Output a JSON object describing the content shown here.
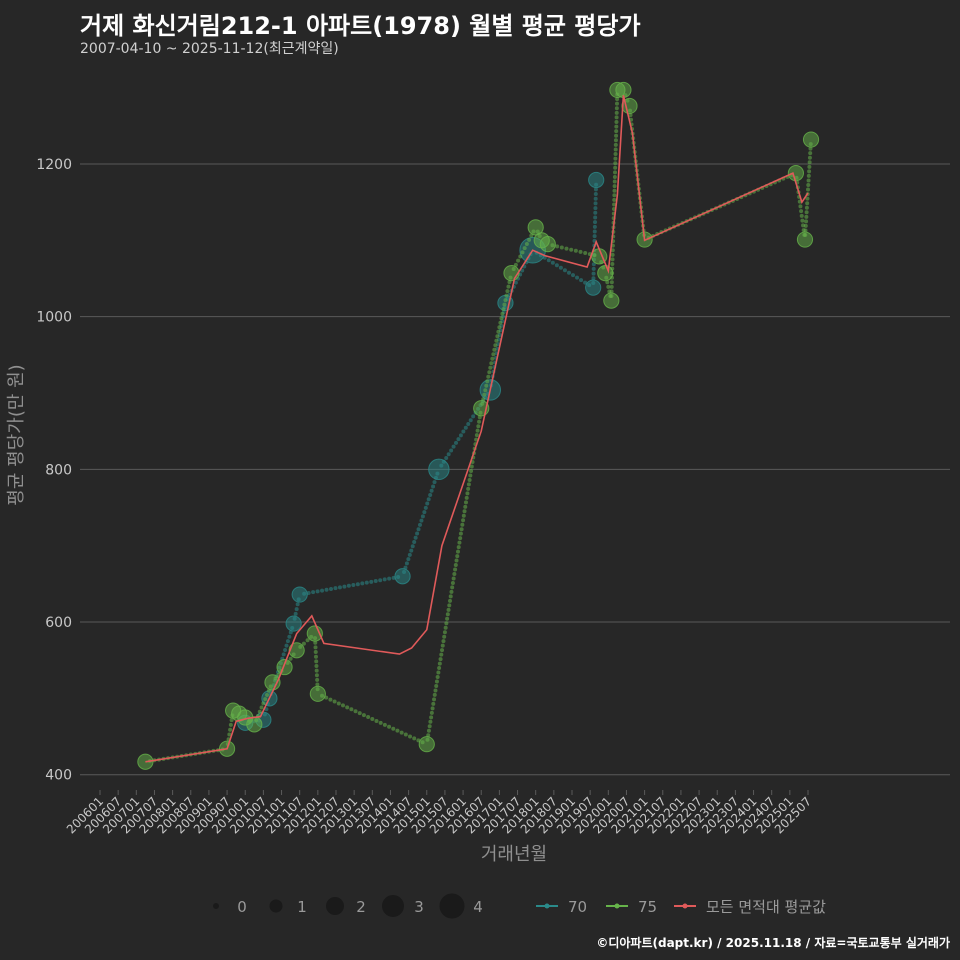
{
  "title": "거제 화신거림212-1 아파트(1978) 월별 평균 평당가",
  "subtitle": "2007-04-10 ~ 2025-11-12(최근계약일)",
  "caption": "©디아파트(dapt.kr) / 2025.11.18 / 자료=국토교통부 실거래가",
  "chart_data": {
    "type": "line",
    "xlabel": "거래년월",
    "ylabel": "평균 평당가(만 원)",
    "x_range": [
      "2006-01",
      "2025-12"
    ],
    "ylim": [
      380,
      1310
    ],
    "yticks": [
      400,
      600,
      800,
      1000,
      1200
    ],
    "grid": true,
    "xtick_labels": [
      "200601",
      "200607",
      "200701",
      "200707",
      "200801",
      "200807",
      "200901",
      "200907",
      "201001",
      "201007",
      "201101",
      "201107",
      "201201",
      "201207",
      "201301",
      "201307",
      "201401",
      "201407",
      "201501",
      "201507",
      "201601",
      "201607",
      "201701",
      "201707",
      "201801",
      "201807",
      "201901",
      "201907",
      "202001",
      "202007",
      "202101",
      "202107",
      "202201",
      "202207",
      "202301",
      "202307",
      "202401",
      "202407",
      "202501",
      "202507"
    ],
    "series": [
      {
        "name": "70",
        "color": "#2a8a8a",
        "points": [
          {
            "x": "2010-01",
            "y": 468,
            "size": 1
          },
          {
            "x": "2010-07",
            "y": 472,
            "size": 1
          },
          {
            "x": "2010-09",
            "y": 500,
            "size": 1
          },
          {
            "x": "2011-05",
            "y": 598,
            "size": 1
          },
          {
            "x": "2011-07",
            "y": 636,
            "size": 1
          },
          {
            "x": "2014-05",
            "y": 660,
            "size": 1
          },
          {
            "x": "2015-05",
            "y": 800,
            "size": 2
          },
          {
            "x": "2016-10",
            "y": 904,
            "size": 2
          },
          {
            "x": "2017-03",
            "y": 1018,
            "size": 1
          },
          {
            "x": "2017-12",
            "y": 1087,
            "size": 3
          },
          {
            "x": "2019-08",
            "y": 1038,
            "size": 1
          },
          {
            "x": "2019-09",
            "y": 1179,
            "size": 1
          }
        ]
      },
      {
        "name": "75",
        "color": "#66b34a",
        "points": [
          {
            "x": "2007-04",
            "y": 417,
            "size": 1
          },
          {
            "x": "2009-07",
            "y": 434,
            "size": 1
          },
          {
            "x": "2009-09",
            "y": 484,
            "size": 1
          },
          {
            "x": "2009-11",
            "y": 480,
            "size": 1
          },
          {
            "x": "2010-01",
            "y": 475,
            "size": 1
          },
          {
            "x": "2010-04",
            "y": 466,
            "size": 1
          },
          {
            "x": "2010-10",
            "y": 521,
            "size": 1
          },
          {
            "x": "2011-02",
            "y": 541,
            "size": 1
          },
          {
            "x": "2011-06",
            "y": 563,
            "size": 1
          },
          {
            "x": "2011-12",
            "y": 585,
            "size": 1
          },
          {
            "x": "2012-01",
            "y": 506,
            "size": 1
          },
          {
            "x": "2015-01",
            "y": 440,
            "size": 1
          },
          {
            "x": "2016-07",
            "y": 880,
            "size": 1
          },
          {
            "x": "2017-05",
            "y": 1057,
            "size": 1
          },
          {
            "x": "2018-01",
            "y": 1117,
            "size": 1
          },
          {
            "x": "2018-03",
            "y": 1100,
            "size": 1
          },
          {
            "x": "2018-05",
            "y": 1095,
            "size": 1
          },
          {
            "x": "2019-10",
            "y": 1079,
            "size": 1
          },
          {
            "x": "2019-12",
            "y": 1057,
            "size": 1
          },
          {
            "x": "2020-02",
            "y": 1021,
            "size": 1
          },
          {
            "x": "2020-04",
            "y": 1297,
            "size": 1
          },
          {
            "x": "2020-06",
            "y": 1297,
            "size": 1
          },
          {
            "x": "2020-08",
            "y": 1276,
            "size": 1
          },
          {
            "x": "2021-01",
            "y": 1101,
            "size": 1
          },
          {
            "x": "2025-03",
            "y": 1188,
            "size": 1
          },
          {
            "x": "2025-06",
            "y": 1101,
            "size": 1
          },
          {
            "x": "2025-08",
            "y": 1232,
            "size": 1
          }
        ]
      },
      {
        "name": "모든 면적대 평균값",
        "color": "#e05a5a",
        "points": [
          {
            "x": "2007-04",
            "y": 417
          },
          {
            "x": "2009-07",
            "y": 434
          },
          {
            "x": "2009-10",
            "y": 470
          },
          {
            "x": "2010-02",
            "y": 474
          },
          {
            "x": "2010-06",
            "y": 476
          },
          {
            "x": "2010-12",
            "y": 525
          },
          {
            "x": "2011-06",
            "y": 585
          },
          {
            "x": "2011-11",
            "y": 608
          },
          {
            "x": "2012-03",
            "y": 572
          },
          {
            "x": "2014-04",
            "y": 558
          },
          {
            "x": "2014-08",
            "y": 566
          },
          {
            "x": "2015-01",
            "y": 590
          },
          {
            "x": "2015-06",
            "y": 700
          },
          {
            "x": "2016-07",
            "y": 850
          },
          {
            "x": "2017-06",
            "y": 1050
          },
          {
            "x": "2017-12",
            "y": 1087
          },
          {
            "x": "2018-04",
            "y": 1080
          },
          {
            "x": "2019-06",
            "y": 1065
          },
          {
            "x": "2019-09",
            "y": 1098
          },
          {
            "x": "2020-01",
            "y": 1060
          },
          {
            "x": "2020-04",
            "y": 1160
          },
          {
            "x": "2020-06",
            "y": 1290
          },
          {
            "x": "2020-09",
            "y": 1240
          },
          {
            "x": "2021-01",
            "y": 1100
          },
          {
            "x": "2025-02",
            "y": 1188
          },
          {
            "x": "2025-05",
            "y": 1150
          },
          {
            "x": "2025-07",
            "y": 1162
          }
        ]
      }
    ],
    "legend": {
      "placement": "bottom",
      "size_labels": [
        "0",
        "1",
        "2",
        "3",
        "4"
      ],
      "series_labels": [
        "70",
        "75",
        "모든 면적대 평균값"
      ]
    }
  }
}
